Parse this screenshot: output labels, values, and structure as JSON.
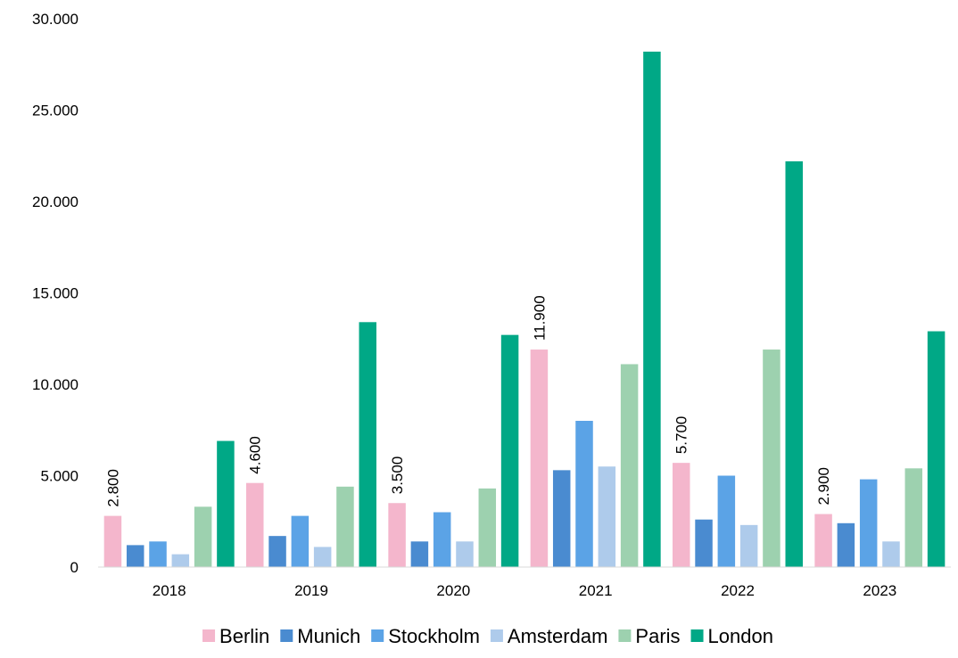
{
  "chart_data": {
    "type": "bar",
    "categories": [
      "2018",
      "2019",
      "2020",
      "2021",
      "2022",
      "2023"
    ],
    "series": [
      {
        "name": "Berlin",
        "color": "#F4B6CC",
        "values": [
          2800,
          4600,
          3500,
          11900,
          5700,
          2900
        ]
      },
      {
        "name": "Munich",
        "color": "#4A8BD0",
        "values": [
          1200,
          1700,
          1400,
          5300,
          2600,
          2400
        ]
      },
      {
        "name": "Stockholm",
        "color": "#5BA3E6",
        "values": [
          1400,
          2800,
          3000,
          8000,
          5000,
          4800
        ]
      },
      {
        "name": "Amsterdam",
        "color": "#AECBEB",
        "values": [
          700,
          1100,
          1400,
          5500,
          2300,
          1400
        ]
      },
      {
        "name": "Paris",
        "color": "#9DD1AF",
        "values": [
          3300,
          4400,
          4300,
          11100,
          11900,
          5400
        ]
      },
      {
        "name": "London",
        "color": "#00A886",
        "values": [
          6900,
          13400,
          12700,
          28200,
          22200,
          12900
        ]
      }
    ],
    "data_labels": {
      "series": "Berlin",
      "texts": [
        "2.800",
        "4.600",
        "3.500",
        "11.900",
        "5.700",
        "2.900"
      ]
    },
    "yticks": [
      0,
      5000,
      10000,
      15000,
      20000,
      25000,
      30000
    ],
    "ytick_labels": [
      "0",
      "5.000",
      "10.000",
      "15.000",
      "20.000",
      "25.000",
      "30.000"
    ],
    "ylim": [
      0,
      30000
    ],
    "grid": false,
    "legend_position": "bottom",
    "title": "",
    "xlabel": "",
    "ylabel": ""
  }
}
